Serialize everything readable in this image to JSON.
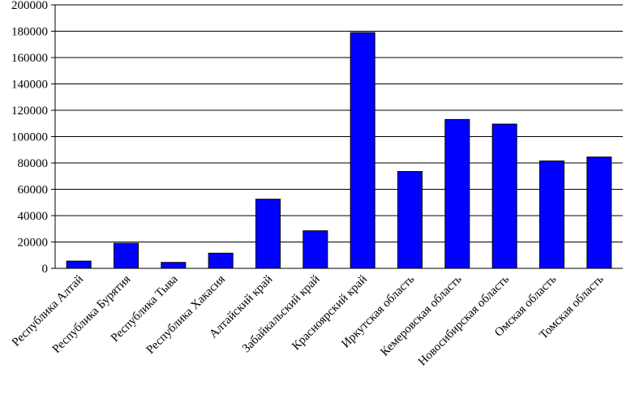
{
  "chart_data": {
    "type": "bar",
    "categories": [
      "Республика Алтай",
      "Республика Бурятия",
      "Республика Тыва",
      "Республика Хакасия",
      "Алтайский край",
      "Забайкальский край",
      "Красноярский край",
      "Иркутская область",
      "Кемеровская область",
      "Новосибирская область",
      "Омская область",
      "Томская область"
    ],
    "values": [
      5500,
      19000,
      4500,
      11500,
      52500,
      28500,
      179000,
      73500,
      113000,
      109500,
      81500,
      84500
    ],
    "color": "#0000ff",
    "ylim": [
      0,
      200000
    ],
    "yticks": [
      0,
      20000,
      40000,
      60000,
      80000,
      100000,
      120000,
      140000,
      160000,
      180000,
      200000
    ],
    "grid": true
  }
}
